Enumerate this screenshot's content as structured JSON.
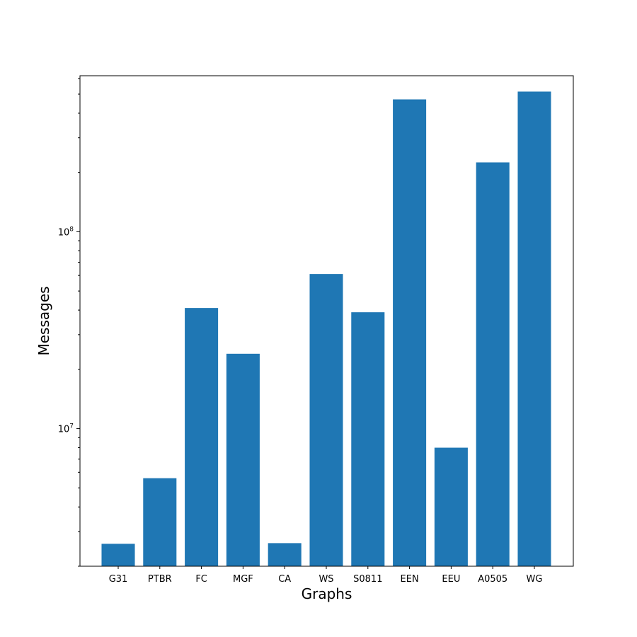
{
  "chart_data": {
    "type": "bar",
    "categories": [
      "G31",
      "PTBR",
      "FC",
      "MGF",
      "CA",
      "WS",
      "S0811",
      "EEN",
      "EEU",
      "A0505",
      "WG"
    ],
    "values": [
      2600000,
      5600000,
      41000000,
      24000000,
      2620000,
      61000000,
      39000000,
      470000000,
      8000000,
      225000000,
      515000000
    ],
    "xlabel": "Graphs",
    "ylabel": "Messages",
    "yscale": "log",
    "ylim": [
      2000000,
      620000000
    ],
    "major_ticks": [
      {
        "value": 10000000,
        "base": "10",
        "exp": "7"
      },
      {
        "value": 100000000,
        "base": "10",
        "exp": "8"
      }
    ],
    "grid": false,
    "legend": "none",
    "bar_color": "#1f77b4"
  }
}
